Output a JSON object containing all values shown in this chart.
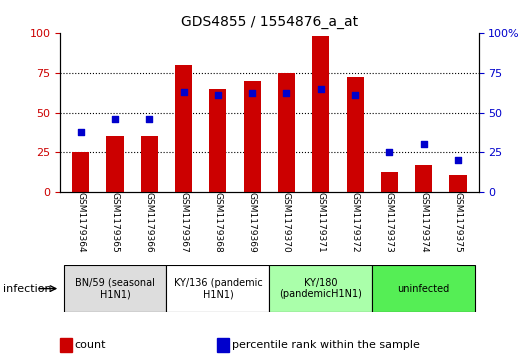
{
  "title": "GDS4855 / 1554876_a_at",
  "samples": [
    "GSM1179364",
    "GSM1179365",
    "GSM1179366",
    "GSM1179367",
    "GSM1179368",
    "GSM1179369",
    "GSM1179370",
    "GSM1179371",
    "GSM1179372",
    "GSM1179373",
    "GSM1179374",
    "GSM1179375"
  ],
  "counts": [
    25,
    35,
    35,
    80,
    65,
    70,
    75,
    98,
    72,
    13,
    17,
    11
  ],
  "percentiles": [
    38,
    46,
    46,
    63,
    61,
    62,
    62,
    65,
    61,
    25,
    30,
    20
  ],
  "groups": [
    {
      "label": "BN/59 (seasonal\nH1N1)",
      "start": 0,
      "end": 3,
      "color": "#dddddd"
    },
    {
      "label": "KY/136 (pandemic\nH1N1)",
      "start": 3,
      "end": 6,
      "color": "#ffffff"
    },
    {
      "label": "KY/180\n(pandemicH1N1)",
      "start": 6,
      "end": 9,
      "color": "#aaffaa"
    },
    {
      "label": "uninfected",
      "start": 9,
      "end": 12,
      "color": "#55ee55"
    }
  ],
  "bar_color": "#cc0000",
  "dot_color": "#0000cc",
  "left_axis_color": "#cc0000",
  "right_axis_color": "#0000cc",
  "ylim": [
    0,
    100
  ],
  "yticks": [
    0,
    25,
    50,
    75,
    100
  ],
  "grid_lines": [
    25,
    50,
    75
  ],
  "bar_width": 0.5,
  "infection_label": "infection",
  "legend_items": [
    {
      "label": "count",
      "color": "#cc0000"
    },
    {
      "label": "percentile rank within the sample",
      "color": "#0000cc"
    }
  ]
}
